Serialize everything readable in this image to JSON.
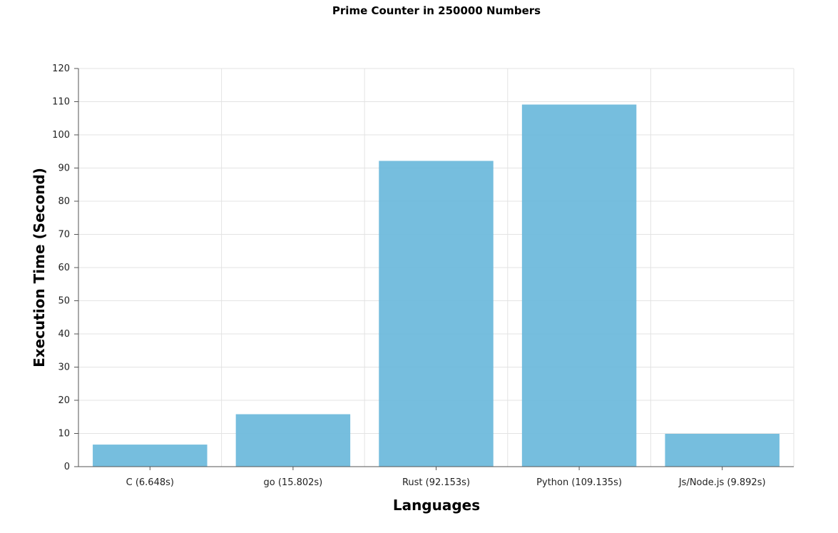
{
  "chart_data": {
    "type": "bar",
    "title": "Prime Counter in 250000 Numbers",
    "xlabel": "Languages",
    "ylabel": "Execution Time (Second)",
    "categories": [
      "C (6.648s)",
      "go (15.802s)",
      "Rust (92.153s)",
      "Python (109.135s)",
      "Js/Node.js (9.892s)"
    ],
    "values": [
      6.648,
      15.802,
      92.153,
      109.135,
      9.892
    ],
    "ylim": [
      0,
      120
    ],
    "yticks": [
      0,
      10,
      20,
      30,
      40,
      50,
      60,
      70,
      80,
      90,
      100,
      110,
      120
    ],
    "grid": true,
    "legend": "none",
    "colors": {
      "bar": "#67b7da"
    }
  }
}
